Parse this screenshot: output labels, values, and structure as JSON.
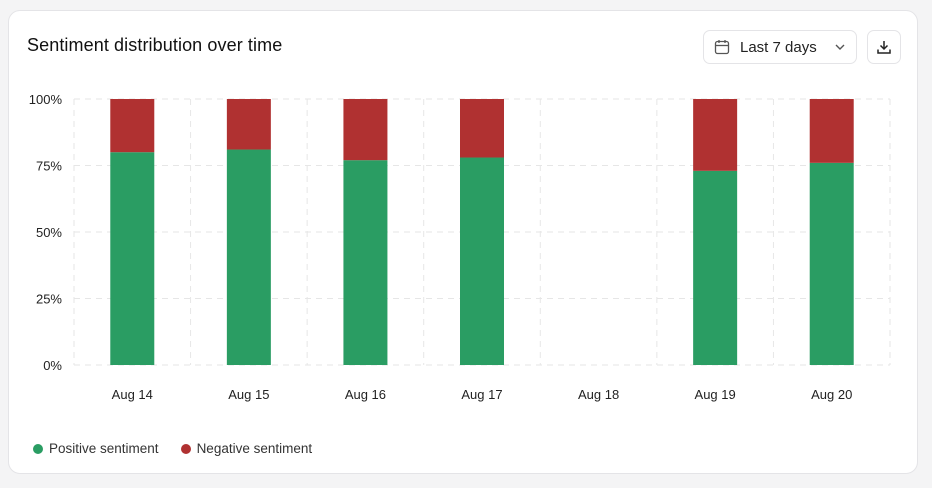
{
  "card": {
    "title": "Sentiment distribution over time"
  },
  "controls": {
    "range_label": "Last 7 days",
    "calendar_icon": "calendar-icon",
    "chevron_icon": "chevron-down-icon",
    "download_icon": "download-icon"
  },
  "colors": {
    "positive": "#2a9d63",
    "negative": "#b03131",
    "grid": "#e6e6e6"
  },
  "chart_data": {
    "type": "bar",
    "stacked": true,
    "title": "Sentiment distribution over time",
    "categories": [
      "Aug 14",
      "Aug 15",
      "Aug 16",
      "Aug 17",
      "Aug 18",
      "Aug 19",
      "Aug 20"
    ],
    "series": [
      {
        "name": "Positive sentiment",
        "values": [
          80,
          81,
          77,
          78,
          null,
          73,
          76
        ]
      },
      {
        "name": "Negative sentiment",
        "values": [
          20,
          19,
          23,
          22,
          null,
          27,
          24
        ]
      }
    ],
    "y_ticks": [
      "0%",
      "25%",
      "50%",
      "75%",
      "100%"
    ],
    "y_tick_values": [
      0,
      25,
      50,
      75,
      100
    ],
    "ylim": [
      0,
      100
    ],
    "grid": true,
    "legend_position": "bottom-left"
  },
  "legend": {
    "positive_label": "Positive sentiment",
    "negative_label": "Negative sentiment"
  }
}
